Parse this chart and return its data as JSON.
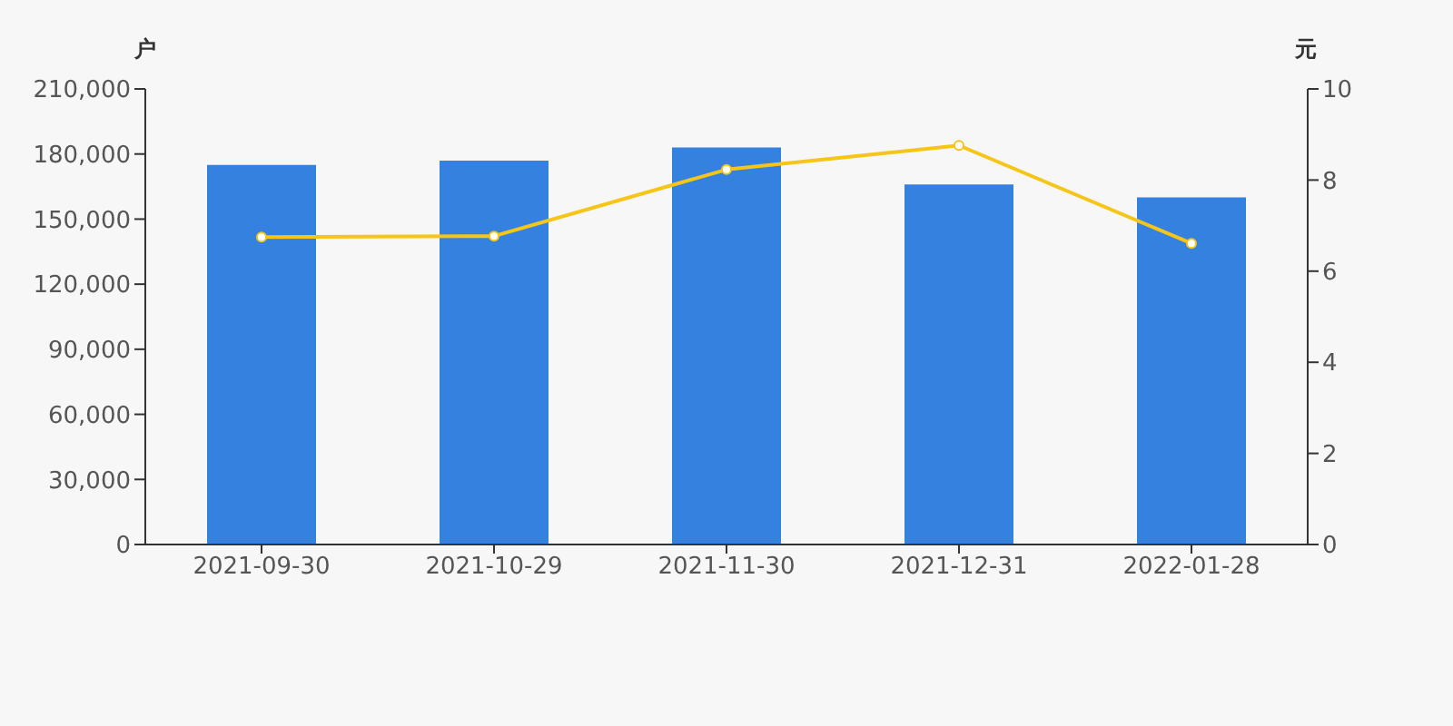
{
  "chart_data": {
    "type": "bar",
    "ylabel": "户",
    "y2label": "元",
    "categories": [
      "2021-09-30",
      "2021-10-29",
      "2021-11-30",
      "2021-12-31",
      "2022-01-28"
    ],
    "series": [
      {
        "color": "#3481e0",
        "values": [
          175000,
          177000,
          183000,
          166000,
          160000
        ]
      },
      {
        "type": "line",
        "axis": "y2",
        "color": "#f5c518",
        "values": [
          6.75,
          6.77,
          8.23,
          8.76,
          6.61
        ]
      }
    ],
    "ylim": [
      0,
      210000
    ],
    "yticks": [
      {
        "value": 0,
        "label": "0"
      },
      {
        "value": 30000,
        "label": "30,000"
      },
      {
        "value": 60000,
        "label": "60,000"
      },
      {
        "value": 90000,
        "label": "90,000"
      },
      {
        "value": 120000,
        "label": "120,000"
      },
      {
        "value": 150000,
        "label": "150,000"
      },
      {
        "value": 180000,
        "label": "180,000"
      },
      {
        "value": 210000,
        "label": "210,000"
      }
    ],
    "y2lim": [
      0,
      10
    ],
    "y2ticks": [
      0,
      2,
      4,
      6,
      8,
      10
    ],
    "grid": false,
    "legend": false,
    "marker": "circle"
  }
}
